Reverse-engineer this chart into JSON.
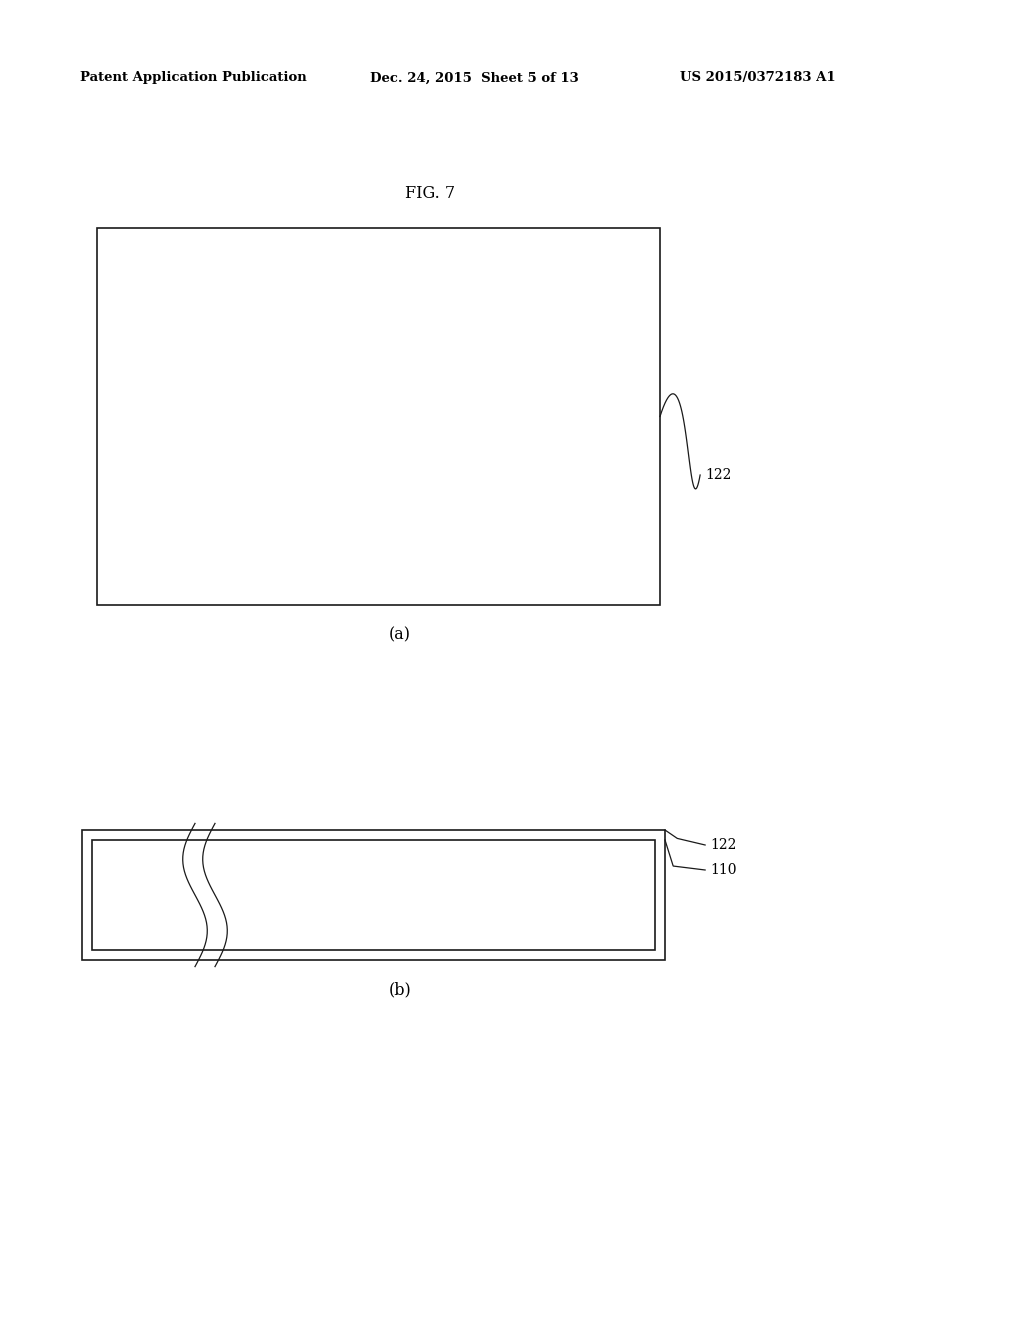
{
  "bg_color": "#ffffff",
  "text_color": "#000000",
  "header_left": "Patent Application Publication",
  "header_mid": "Dec. 24, 2015  Sheet 5 of 13",
  "header_right": "US 2015/0372183 A1",
  "fig_label": "FIG. 7",
  "label_a": "(a)",
  "label_b": "(b)",
  "ref_122": "122",
  "ref_110": "110",
  "line_color": "#1a1a1a",
  "line_width": 1.2
}
